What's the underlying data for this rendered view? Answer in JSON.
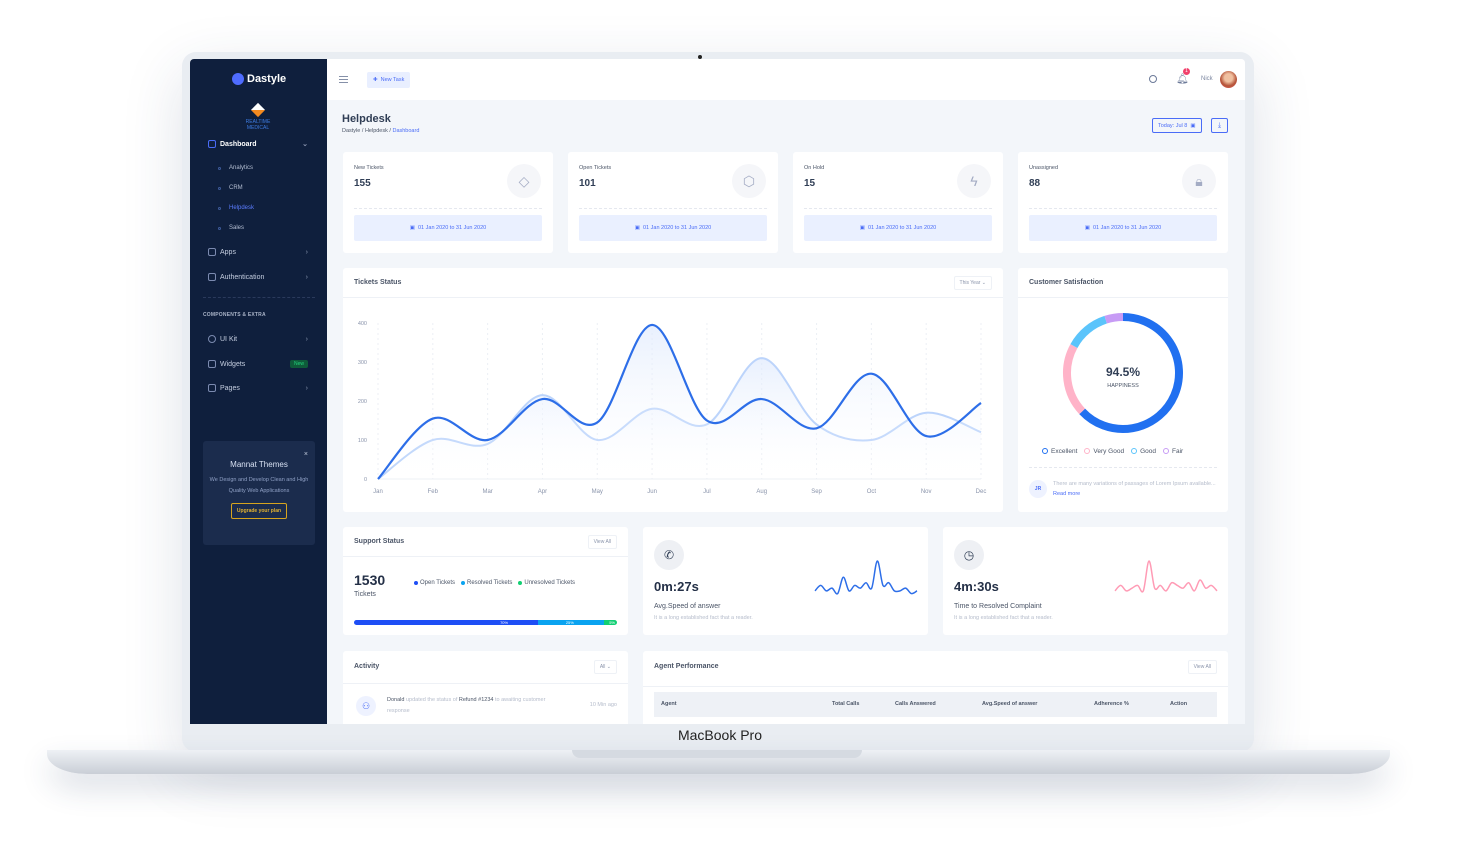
{
  "device": {
    "label": "MacBook Pro"
  },
  "sidebar": {
    "brand": "Dastyle",
    "client_logo": "REALTIME MEDICAL",
    "menu": [
      {
        "label": "Dashboard",
        "icon": "home-icon",
        "expanded": true
      },
      {
        "label": "Apps",
        "icon": "grid-icon"
      },
      {
        "label": "Authentication",
        "icon": "lock-icon"
      }
    ],
    "submenu": [
      {
        "label": "Analytics"
      },
      {
        "label": "CRM"
      },
      {
        "label": "Helpdesk",
        "active": true
      },
      {
        "label": "Sales"
      }
    ],
    "section_title": "COMPONENTS & EXTRA",
    "extra": [
      {
        "label": "UI Kit",
        "icon": "cube-icon"
      },
      {
        "label": "Widgets",
        "icon": "layers-icon",
        "badge": "New"
      },
      {
        "label": "Pages",
        "icon": "file-icon"
      }
    ],
    "promo": {
      "title": "Mannat Themes",
      "text": "We Design and Develop Clean and High Quality Web Applications",
      "button": "Upgrade your plan",
      "close": "×"
    }
  },
  "topbar": {
    "new_task": "New Task",
    "notifications": "1",
    "user": "Nick"
  },
  "page": {
    "title": "Helpdesk",
    "breadcrumb": [
      "Dastyle",
      "Helpdesk",
      "Dashboard"
    ],
    "today": "Today: Jul 8"
  },
  "stats": [
    {
      "label": "New Tickets",
      "value": "155",
      "icon": "tag-icon",
      "range": "01 Jan 2020 to 31 Jun 2020"
    },
    {
      "label": "Open Tickets",
      "value": "101",
      "icon": "box-icon",
      "range": "01 Jan 2020 to 31 Jun 2020"
    },
    {
      "label": "On Hold",
      "value": "15",
      "icon": "zap-icon",
      "range": "01 Jan 2020 to 31 Jun 2020"
    },
    {
      "label": "Unassigned",
      "value": "88",
      "icon": "lock-icon",
      "range": "01 Jan 2020 to 31 Jun 2020"
    }
  ],
  "tickets_status": {
    "title": "Tickets Status",
    "filter": "This Year"
  },
  "chart_data": [
    {
      "type": "area",
      "categories": [
        "Jan",
        "Feb",
        "Mar",
        "Apr",
        "May",
        "Jun",
        "Jul",
        "Aug",
        "Sep",
        "Oct",
        "Nov",
        "Dec"
      ],
      "yticks": [
        0,
        100,
        200,
        300,
        400
      ],
      "ylim": [
        0,
        400
      ],
      "grid": "vertical dashed",
      "series": [
        {
          "values": [
            0,
            155,
            100,
            205,
            145,
            395,
            150,
            205,
            130,
            270,
            110,
            195
          ],
          "color": "#2d6ee8"
        },
        {
          "values": [
            0,
            100,
            90,
            215,
            100,
            180,
            140,
            310,
            140,
            100,
            170,
            120
          ],
          "color": "#bcd4fb"
        }
      ]
    },
    {
      "type": "pie",
      "title": "Customer Satisfaction",
      "center_value": "94.5%",
      "center_label": "HAPPINESS",
      "categories": [
        "Excellent",
        "Very Good",
        "Good",
        "Fair"
      ],
      "values": [
        63,
        20,
        12,
        5
      ],
      "colors": [
        "#2170f0",
        "#ffb3c8",
        "#5bc4fb",
        "#c79bf5"
      ]
    },
    {
      "type": "line",
      "name_ref": "avg_speed",
      "values": [
        3,
        5,
        3,
        4,
        2,
        8,
        3,
        5,
        4,
        6,
        4,
        14,
        5,
        6,
        3,
        3,
        4,
        2,
        3
      ],
      "color": "#2d6ee8"
    },
    {
      "type": "line",
      "name_ref": "resolve_time",
      "values": [
        3,
        5,
        3,
        4,
        5,
        3,
        14,
        4,
        5,
        3,
        6,
        5,
        4,
        6,
        3,
        7,
        4,
        5,
        3
      ],
      "color": "#ff9bb5"
    }
  ],
  "satisfaction": {
    "title": "Customer Satisfaction",
    "comment_initials": "JR",
    "comment": "There are many variations of passages of Lorem Ipsum available...",
    "read_more": "Read more"
  },
  "support": {
    "title": "Support Status",
    "view_all": "View All",
    "total": "1530",
    "unit": "Tickets",
    "legend": [
      {
        "label": "Open Tickets",
        "color": "#1e4ef5"
      },
      {
        "label": "Resolved Tickets",
        "color": "#0aa3f0"
      },
      {
        "label": "Unresolved Tickets",
        "color": "#12cf73"
      }
    ],
    "progress": [
      {
        "label": "70%",
        "value": 70,
        "color": "#1e4ef5"
      },
      {
        "label": "25%",
        "value": 25,
        "color": "#0aa3f0"
      },
      {
        "label": "5%",
        "value": 5,
        "color": "#12cf73"
      }
    ]
  },
  "avg_speed": {
    "value": "0m:27s",
    "label": "Avg.Speed of answer",
    "desc": "It is a long established fact that a reader."
  },
  "resolve_time": {
    "value": "4m:30s",
    "label": "Time to Resolved Complaint",
    "desc": "It is a long established fact that a reader."
  },
  "activity": {
    "title": "Activity",
    "filter": "All",
    "items": [
      {
        "user": "Donald",
        "action": "updated the status of",
        "target": "Refund #1234",
        "rest": "to awaiting customer response",
        "time": "10 Min ago"
      }
    ]
  },
  "agents": {
    "title": "Agent Performance",
    "view_all": "View All",
    "columns": [
      "Agent",
      "Total Calls",
      "Calls Answered",
      "Avg.Speed of answer",
      "Adherence %",
      "Action"
    ]
  }
}
